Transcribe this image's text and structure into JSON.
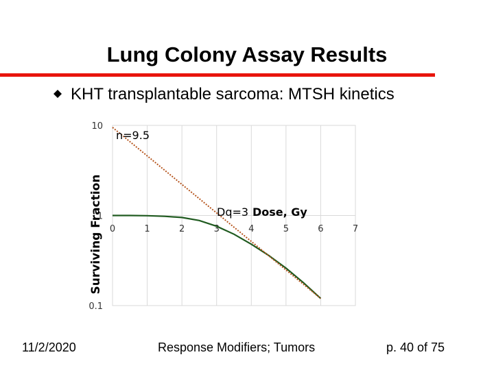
{
  "slide": {
    "title": "Lung Colony Assay Results",
    "bullet": "KHT transplantable sarcoma: MTSH kinetics",
    "bullet_icon": "diamond-bullet-icon",
    "footer_date": "11/2/2020",
    "footer_center": "Response Modifiers; Tumors",
    "footer_page": "p. 40 of 75"
  },
  "colors": {
    "rule": "#e8140c",
    "curve": "#1f5a1f",
    "asymptote": "#b5541c",
    "grid": "#d9d9d9"
  },
  "chart_data": {
    "type": "line",
    "xlabel": "Dose, Gy",
    "ylabel": "Surviving Fraction",
    "xlim": [
      0,
      7
    ],
    "ylim": [
      0.1,
      10
    ],
    "yscale": "log",
    "x_ticks": [
      "0",
      "1",
      "2",
      "3",
      "4",
      "5",
      "6",
      "7"
    ],
    "y_ticks": [
      "10",
      "1",
      "0.1"
    ],
    "grid": true,
    "series": [
      {
        "style": "solid",
        "x": [
          0,
          0.5,
          1.0,
          1.5,
          2.0,
          2.5,
          3.0,
          3.5,
          4.0,
          4.5,
          5.0,
          5.5,
          6.0
        ],
        "y": [
          1.0,
          1.0,
          0.995,
          0.98,
          0.95,
          0.88,
          0.76,
          0.62,
          0.48,
          0.36,
          0.26,
          0.18,
          0.12
        ]
      },
      {
        "style": "dotted",
        "x": [
          0,
          6.0
        ],
        "y": [
          9.5,
          0.12
        ]
      }
    ],
    "annotations": {
      "n_label": "n=9.5",
      "dq_label": "Dq=3"
    }
  }
}
